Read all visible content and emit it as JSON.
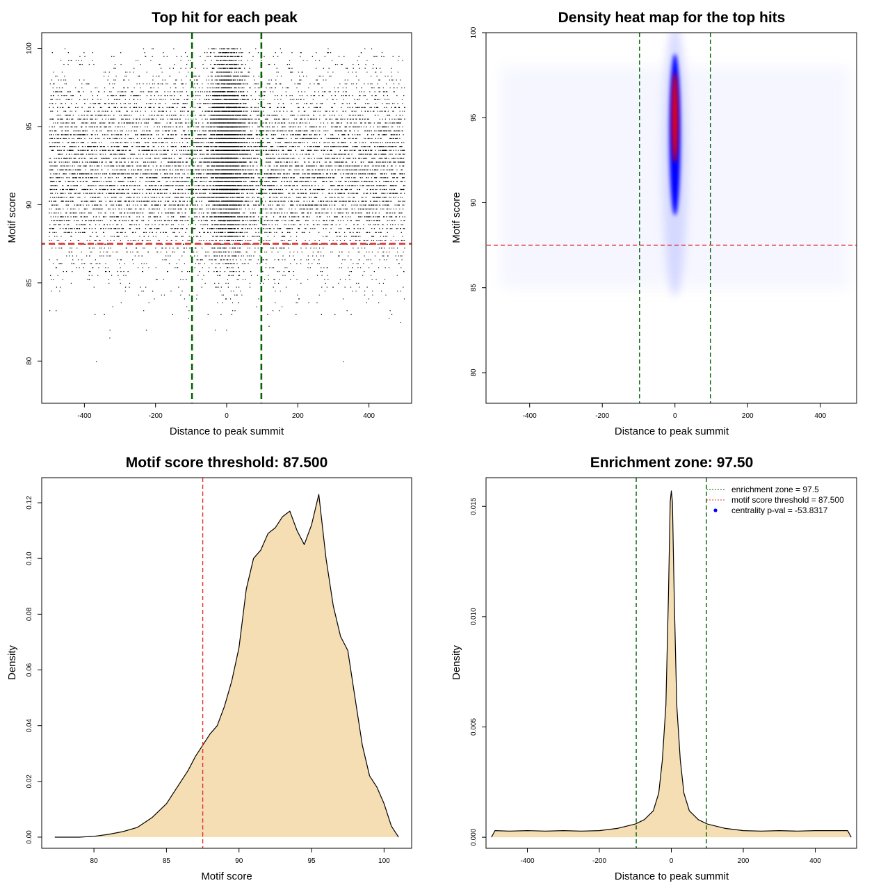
{
  "chart_data": [
    {
      "type": "scatter",
      "title": "Top hit for each peak",
      "xlabel": "Distance to peak summit",
      "ylabel": "Motif score",
      "xlim": [
        -520,
        520
      ],
      "ylim": [
        77.3,
        101
      ],
      "xticks": [
        -400,
        -200,
        0,
        200,
        400
      ],
      "yticks": [
        80,
        85,
        90,
        95,
        100
      ],
      "xtick_labels": [
        "-400",
        "-200",
        "0",
        "200",
        "400"
      ],
      "ytick_labels": [
        "80",
        "85",
        "90",
        "95",
        "100"
      ],
      "grid": false,
      "reference_lines": [
        {
          "orientation": "vertical",
          "value": -97.5,
          "color": "#006400",
          "style": "dashed"
        },
        {
          "orientation": "vertical",
          "value": 97.5,
          "color": "#006400",
          "style": "dashed"
        },
        {
          "orientation": "horizontal",
          "value": 87.5,
          "color": "#e03030",
          "style": "dashed"
        }
      ],
      "point_color": "#000000",
      "x_range_of_points": [
        -500,
        500
      ],
      "y_range_of_points": [
        78.2,
        100
      ],
      "approx_points": 14000
    },
    {
      "type": "heatmap",
      "title": "Density heat map for the top hits",
      "xlabel": "Distance to peak summit",
      "ylabel": "Motif score",
      "xlim": [
        -520,
        500
      ],
      "ylim": [
        78.2,
        100
      ],
      "xticks": [
        -400,
        -200,
        0,
        200,
        400
      ],
      "yticks": [
        80,
        85,
        90,
        95,
        100
      ],
      "xtick_labels": [
        "-400",
        "-200",
        "0",
        "200",
        "400"
      ],
      "ytick_labels": [
        "80",
        "85",
        "90",
        "95",
        "100"
      ],
      "colors": [
        "#ffffff",
        "#0000ff",
        "#ff0000"
      ],
      "hotspot": {
        "x": 0,
        "y": 95
      },
      "reference_lines": [
        {
          "orientation": "vertical",
          "value": -97.5,
          "color": "#006400",
          "style": "dashed"
        },
        {
          "orientation": "vertical",
          "value": 97.5,
          "color": "#006400",
          "style": "dashed"
        },
        {
          "orientation": "horizontal",
          "value": 87.5,
          "color": "#e03030",
          "style": "dashed"
        }
      ]
    },
    {
      "type": "area",
      "title": "Motif score threshold: 87.500",
      "xlabel": "Motif score",
      "ylabel": "Density",
      "xlim": [
        76.4,
        101.9
      ],
      "ylim": [
        -0.004,
        0.129
      ],
      "xticks": [
        80,
        85,
        90,
        95,
        100
      ],
      "yticks": [
        0,
        0.02,
        0.04,
        0.06,
        0.08,
        0.1,
        0.12
      ],
      "xtick_labels": [
        "80",
        "85",
        "90",
        "95",
        "100"
      ],
      "ytick_labels": [
        "0.00",
        "0.02",
        "0.04",
        "0.06",
        "0.08",
        "0.10",
        "0.12"
      ],
      "fill_color": "#f5deb3",
      "line_color": "#000000",
      "reference_lines": [
        {
          "orientation": "vertical",
          "value": 87.5,
          "color": "#e03030",
          "style": "dashed"
        }
      ],
      "x": [
        77.3,
        79,
        80,
        81,
        82,
        83,
        84,
        85,
        86,
        86.5,
        87,
        87.5,
        88,
        88.5,
        89,
        89.5,
        90,
        90.5,
        91,
        91.5,
        92,
        92.5,
        93,
        93.5,
        94,
        94.5,
        95,
        95.5,
        96,
        96.5,
        97,
        97.5,
        98,
        98.5,
        99,
        99.5,
        100,
        100.5,
        101
      ],
      "y": [
        0.0,
        0.0,
        0.0003,
        0.001,
        0.002,
        0.0035,
        0.007,
        0.012,
        0.02,
        0.024,
        0.029,
        0.033,
        0.037,
        0.04,
        0.047,
        0.056,
        0.068,
        0.089,
        0.1,
        0.103,
        0.109,
        0.111,
        0.115,
        0.117,
        0.11,
        0.105,
        0.112,
        0.123,
        0.1,
        0.083,
        0.072,
        0.067,
        0.05,
        0.033,
        0.022,
        0.018,
        0.012,
        0.004,
        0.0
      ]
    },
    {
      "type": "area",
      "title": "Enrichment zone: 97.50",
      "xlabel": "Distance to peak summit",
      "ylabel": "Density",
      "xlim": [
        -515,
        515
      ],
      "ylim": [
        -0.0005,
        0.0163
      ],
      "xticks": [
        -400,
        -200,
        0,
        200,
        400
      ],
      "yticks": [
        0,
        0.005,
        0.01,
        0.015
      ],
      "xtick_labels": [
        "-400",
        "-200",
        "0",
        "200",
        "400"
      ],
      "ytick_labels": [
        "0.000",
        "0.005",
        "0.010",
        "0.015"
      ],
      "fill_color": "#f5deb3",
      "line_color": "#000000",
      "reference_lines": [
        {
          "orientation": "vertical",
          "value": -97.5,
          "color": "#006400",
          "style": "dashed"
        },
        {
          "orientation": "vertical",
          "value": 97.5,
          "color": "#006400",
          "style": "dashed"
        }
      ],
      "x": [
        -500,
        -490,
        -450,
        -400,
        -350,
        -300,
        -250,
        -200,
        -150,
        -100,
        -75,
        -50,
        -35,
        -25,
        -15,
        -8,
        -3,
        0,
        3,
        8,
        15,
        25,
        35,
        50,
        75,
        100,
        150,
        200,
        250,
        300,
        350,
        400,
        450,
        490,
        500
      ],
      "y": [
        0.0,
        0.0003,
        0.00028,
        0.0003,
        0.00028,
        0.0003,
        0.00028,
        0.0003,
        0.0004,
        0.0006,
        0.0008,
        0.0012,
        0.002,
        0.0035,
        0.006,
        0.011,
        0.0152,
        0.0157,
        0.0152,
        0.011,
        0.006,
        0.0035,
        0.002,
        0.0012,
        0.0008,
        0.0006,
        0.0004,
        0.0003,
        0.00028,
        0.0003,
        0.00028,
        0.0003,
        0.0003,
        0.0003,
        0.0
      ],
      "legend": {
        "placement": "top-right",
        "entries": [
          {
            "label": "enrichment zone = 97.5",
            "color": "#006400",
            "marker": "dotted-line"
          },
          {
            "label": "motif score threshold = 87.500",
            "color": "#e03030",
            "marker": "dotted-line"
          },
          {
            "label": "centrality p-val = -53.8317",
            "color": "#0000ff",
            "marker": "dot"
          }
        ]
      }
    }
  ]
}
